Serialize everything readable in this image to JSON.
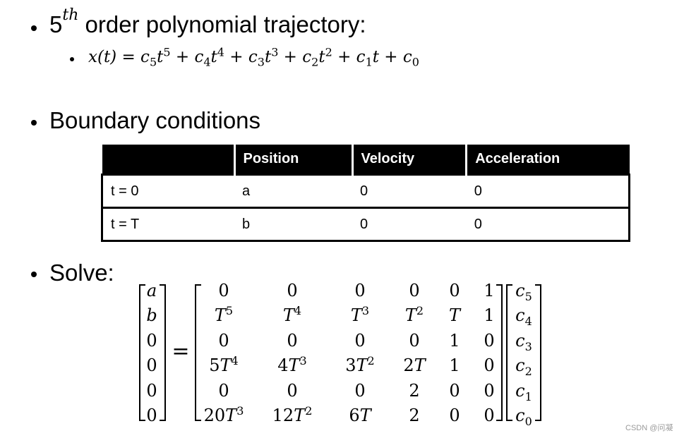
{
  "bullet1": {
    "base": "5",
    "sup": "th",
    "text": "order polynomial trajectory:"
  },
  "equation": [
    {
      "kind": "text",
      "text": "x(t) = c"
    },
    {
      "kind": "sub",
      "text": "5"
    },
    {
      "kind": "text",
      "text": "t"
    },
    {
      "kind": "sup",
      "text": "5"
    },
    {
      "kind": "text",
      "text": " + c"
    },
    {
      "kind": "sub",
      "text": "4"
    },
    {
      "kind": "text",
      "text": "t"
    },
    {
      "kind": "sup",
      "text": "4"
    },
    {
      "kind": "text",
      "text": " + c"
    },
    {
      "kind": "sub",
      "text": "3"
    },
    {
      "kind": "text",
      "text": "t"
    },
    {
      "kind": "sup",
      "text": "3"
    },
    {
      "kind": "text",
      "text": " + c"
    },
    {
      "kind": "sub",
      "text": "2"
    },
    {
      "kind": "text",
      "text": "t"
    },
    {
      "kind": "sup",
      "text": "2"
    },
    {
      "kind": "text",
      "text": " + c"
    },
    {
      "kind": "sub",
      "text": "1"
    },
    {
      "kind": "text",
      "text": "t + c"
    },
    {
      "kind": "sub",
      "text": "0"
    }
  ],
  "bullet2": "Boundary conditions",
  "table": {
    "header": [
      "Position",
      "Velocity",
      "Acceleration"
    ],
    "rows": [
      [
        "t = 0",
        "a",
        "0",
        "0"
      ],
      [
        "t = T",
        "b",
        "0",
        "0"
      ]
    ]
  },
  "bullet3": "Solve:",
  "solve": {
    "left": [
      "a",
      "b",
      "0",
      "0",
      "0",
      "0"
    ],
    "equals": "=",
    "matrix": [
      [
        {
          "text": "0"
        },
        {
          "text": "0"
        },
        {
          "text": "0"
        },
        {
          "text": "0"
        },
        {
          "text": "0"
        },
        {
          "text": "1"
        }
      ],
      [
        {
          "text": "T",
          "sup": "5"
        },
        {
          "text": "T",
          "sup": "4"
        },
        {
          "text": "T",
          "sup": "3"
        },
        {
          "text": "T",
          "sup": "2"
        },
        {
          "text": "T"
        },
        {
          "text": "1"
        }
      ],
      [
        {
          "text": "0"
        },
        {
          "text": "0"
        },
        {
          "text": "0"
        },
        {
          "text": "0"
        },
        {
          "text": "1"
        },
        {
          "text": "0"
        }
      ],
      [
        {
          "text": "5T",
          "sup": "4"
        },
        {
          "text": "4T",
          "sup": "3"
        },
        {
          "text": "3T",
          "sup": "2"
        },
        {
          "text": "2T"
        },
        {
          "text": "1"
        },
        {
          "text": "0"
        }
      ],
      [
        {
          "text": "0"
        },
        {
          "text": "0"
        },
        {
          "text": "0"
        },
        {
          "text": "2"
        },
        {
          "text": "0"
        },
        {
          "text": "0"
        }
      ],
      [
        {
          "text": "20T",
          "sup": "3"
        },
        {
          "text": "12T",
          "sup": "2"
        },
        {
          "text": "6T"
        },
        {
          "text": "2"
        },
        {
          "text": "0"
        },
        {
          "text": "0"
        }
      ]
    ],
    "right": [
      {
        "text": "c",
        "sub": "5"
      },
      {
        "text": "c",
        "sub": "4"
      },
      {
        "text": "c",
        "sub": "3"
      },
      {
        "text": "c",
        "sub": "2"
      },
      {
        "text": "c",
        "sub": "1"
      },
      {
        "text": "c",
        "sub": "0"
      }
    ]
  },
  "watermark": "CSDN @问凝"
}
